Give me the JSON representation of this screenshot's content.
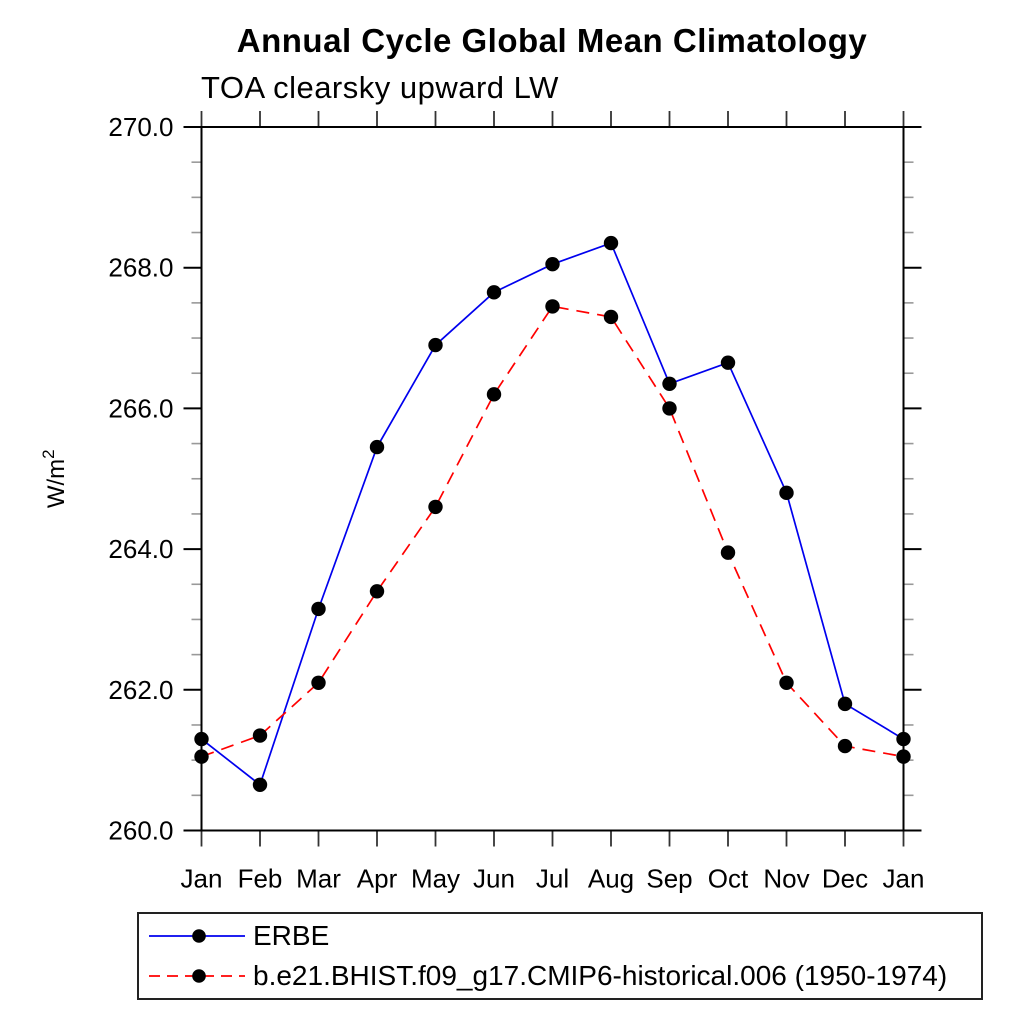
{
  "page": {
    "background": "#ffffff"
  },
  "chart_data": {
    "type": "line",
    "title": "Annual Cycle Global Mean Climatology",
    "subtitle": "TOA clearsky upward LW",
    "categories": [
      "Jan",
      "Feb",
      "Mar",
      "Apr",
      "May",
      "Jun",
      "Jul",
      "Aug",
      "Sep",
      "Oct",
      "Nov",
      "Dec",
      "Jan"
    ],
    "series": [
      {
        "name": "ERBE",
        "color": "#0000ee",
        "line_style": "solid",
        "marker": "filled-circle",
        "marker_color": "#000000",
        "values": [
          261.3,
          260.65,
          263.15,
          265.45,
          266.9,
          267.65,
          268.05,
          268.35,
          266.35,
          266.65,
          264.8,
          261.8,
          261.3
        ]
      },
      {
        "name": "b.e21.BHIST.f09_g17.CMIP6-historical.006 (1950-1974)",
        "color": "#ff0000",
        "line_style": "dashed",
        "marker": "filled-circle",
        "marker_color": "#000000",
        "values": [
          261.05,
          261.35,
          262.1,
          263.4,
          264.6,
          266.2,
          267.45,
          267.3,
          266.0,
          263.95,
          262.1,
          261.2,
          261.05
        ]
      }
    ],
    "xlabel": "",
    "ylabel": "W/m2",
    "ylabel_display": {
      "base": "W/m",
      "superscript": "2"
    },
    "ylim": [
      260.0,
      270.0
    ],
    "yticks_major": {
      "values": [
        260,
        262,
        264,
        266,
        268,
        270
      ],
      "labels": [
        "260.0",
        "262.0",
        "264.0",
        "266.0",
        "268.0",
        "270.0"
      ]
    },
    "ytick_minor_interval": 0.5,
    "grid": false,
    "axis_color": "#000000",
    "minor_tick_color": "#999999",
    "legend": {
      "position": "bottom-left",
      "entries": [
        "ERBE",
        "b.e21.BHIST.f09_g17.CMIP6-historical.006 (1950-1974)"
      ]
    }
  }
}
